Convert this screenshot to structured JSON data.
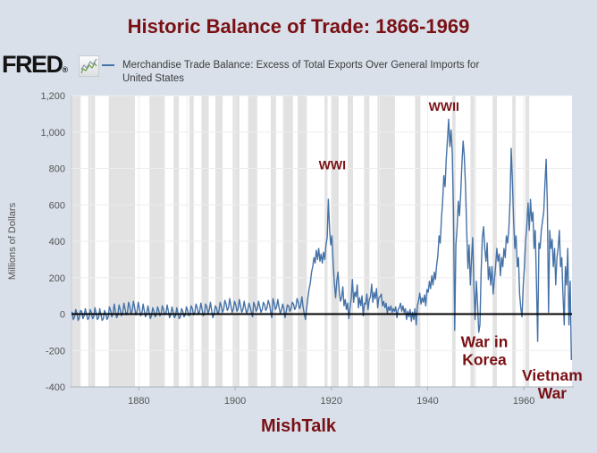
{
  "page": {
    "title": "Historic Balance of Trade: 1866-1969"
  },
  "header": {
    "logo_text": "FRED",
    "logo_reg": "®"
  },
  "legend": {
    "line1": "Merchandise Trade Balance: Excess of Total Exports Over General Imports for",
    "line2": "United States"
  },
  "footer": {
    "brand": "MishTalk"
  },
  "chart_data": {
    "type": "line",
    "title": "Historic Balance of Trade: 1866-1969",
    "series_name": "Merchandise Trade Balance: Excess of Total Exports Over General Imports for United States",
    "xlabel": "",
    "ylabel": "Millions of Dollars",
    "xlim": [
      1866,
      1970
    ],
    "ylim": [
      -400,
      1200
    ],
    "x_start_year": 1866,
    "points_per_year": 4,
    "line_color": "#4572a7",
    "zero_line_color": "#000000",
    "recession_color": "#e2e2e2",
    "grid_color": "#ededed",
    "axis_color": "#aab0ba",
    "plot_bg": "#ffffff",
    "yticks": [
      {
        "value": 1200,
        "label": "1,200"
      },
      {
        "value": 1000,
        "label": "1,000"
      },
      {
        "value": 800,
        "label": "800"
      },
      {
        "value": 600,
        "label": "600"
      },
      {
        "value": 400,
        "label": "400"
      },
      {
        "value": 200,
        "label": "200"
      },
      {
        "value": 0,
        "label": "0"
      },
      {
        "value": -200,
        "label": "-200"
      },
      {
        "value": -400,
        "label": "-400"
      }
    ],
    "xticks": [
      {
        "value": 1880,
        "label": "1880"
      },
      {
        "value": 1900,
        "label": "1900"
      },
      {
        "value": 1920,
        "label": "1920"
      },
      {
        "value": 1940,
        "label": "1940"
      },
      {
        "value": 1960,
        "label": "1960"
      }
    ],
    "grid_decades": [
      1870,
      1880,
      1890,
      1900,
      1910,
      1920,
      1930,
      1940,
      1950,
      1960
    ],
    "recessions": [
      [
        1866.0,
        1867.9
      ],
      [
        1869.5,
        1870.9
      ],
      [
        1873.75,
        1879.2
      ],
      [
        1882.2,
        1885.4
      ],
      [
        1887.2,
        1888.3
      ],
      [
        1890.5,
        1891.4
      ],
      [
        1893.0,
        1894.5
      ],
      [
        1895.9,
        1897.4
      ],
      [
        1899.5,
        1900.9
      ],
      [
        1902.7,
        1904.6
      ],
      [
        1907.4,
        1908.5
      ],
      [
        1910.0,
        1912.0
      ],
      [
        1913.0,
        1914.9
      ],
      [
        1918.6,
        1919.2
      ],
      [
        1920.0,
        1921.5
      ],
      [
        1923.4,
        1924.5
      ],
      [
        1926.8,
        1927.9
      ],
      [
        1929.6,
        1933.2
      ],
      [
        1937.4,
        1938.5
      ],
      [
        1945.1,
        1945.8
      ],
      [
        1948.9,
        1949.8
      ],
      [
        1953.5,
        1954.4
      ],
      [
        1957.6,
        1958.3
      ],
      [
        1960.3,
        1961.1
      ]
    ],
    "annotations": [
      {
        "id": "wwi",
        "lines": [
          "WWI"
        ],
        "year": 1920.2,
        "value": 820
      },
      {
        "id": "wwii",
        "lines": [
          "WWII"
        ],
        "year": 1943.4,
        "value": 1140
      },
      {
        "id": "korea",
        "lines": [
          "War in",
          "Korea"
        ],
        "year": 1951.8,
        "value": -205
      },
      {
        "id": "vietnam",
        "lines": [
          "Vietnam",
          "War"
        ],
        "year": 1965.9,
        "value": -390
      }
    ],
    "values": [
      10,
      -30,
      -15,
      25,
      5,
      -35,
      -20,
      20,
      15,
      -25,
      -10,
      30,
      0,
      -30,
      -20,
      25,
      10,
      -25,
      -15,
      35,
      5,
      -30,
      -20,
      30,
      -5,
      -35,
      -25,
      20,
      0,
      -30,
      -15,
      40,
      20,
      -15,
      0,
      55,
      15,
      -20,
      -5,
      50,
      25,
      -10,
      5,
      60,
      30,
      -5,
      10,
      65,
      40,
      0,
      20,
      70,
      35,
      -5,
      15,
      65,
      30,
      -10,
      5,
      55,
      20,
      -15,
      0,
      45,
      10,
      -25,
      -10,
      35,
      15,
      -15,
      -5,
      40,
      20,
      -10,
      0,
      45,
      25,
      -5,
      5,
      50,
      15,
      -20,
      -5,
      40,
      10,
      -20,
      -10,
      35,
      5,
      -25,
      -15,
      30,
      15,
      -15,
      -5,
      40,
      20,
      -10,
      0,
      45,
      30,
      -5,
      10,
      55,
      35,
      0,
      15,
      60,
      25,
      -10,
      5,
      55,
      40,
      5,
      20,
      65,
      20,
      -20,
      0,
      45,
      35,
      0,
      15,
      65,
      45,
      10,
      25,
      75,
      55,
      20,
      35,
      85,
      45,
      10,
      25,
      70,
      50,
      15,
      30,
      80,
      45,
      10,
      25,
      70,
      35,
      5,
      20,
      60,
      40,
      10,
      -15,
      65,
      45,
      15,
      30,
      70,
      40,
      10,
      25,
      65,
      50,
      20,
      35,
      75,
      55,
      15,
      -20,
      85,
      60,
      25,
      40,
      80,
      35,
      5,
      20,
      55,
      30,
      -20,
      15,
      50,
      45,
      15,
      30,
      65,
      55,
      25,
      40,
      85,
      65,
      30,
      45,
      95,
      40,
      0,
      -30,
      35,
      90,
      140,
      170,
      230,
      260,
      310,
      280,
      350,
      300,
      360,
      290,
      330,
      280,
      340,
      300,
      380,
      420,
      630,
      460,
      380,
      430,
      280,
      170,
      90,
      180,
      230,
      130,
      70,
      90,
      150,
      45,
      80,
      25,
      60,
      -25,
      35,
      85,
      190,
      65,
      120,
      95,
      160,
      35,
      90,
      45,
      100,
      -10,
      60,
      55,
      110,
      25,
      80,
      95,
      165,
      65,
      120,
      85,
      140,
      35,
      90,
      95,
      110,
      45,
      70,
      35,
      60,
      5,
      40,
      20,
      45,
      10,
      30,
      15,
      40,
      -20,
      25,
      35,
      60,
      15,
      45,
      10,
      30,
      -30,
      15,
      -15,
      25,
      -40,
      10,
      -30,
      30,
      -60,
      45,
      75,
      115,
      55,
      90,
      65,
      105,
      45,
      135,
      120,
      180,
      140,
      210,
      160,
      230,
      190,
      270,
      320,
      430,
      390,
      520,
      620,
      760,
      700,
      850,
      960,
      1070,
      920,
      1010,
      880,
      560,
      -90,
      380,
      470,
      620,
      540,
      660,
      820,
      950,
      870,
      700,
      460,
      250,
      380,
      160,
      300,
      420,
      150,
      -30,
      180,
      60,
      -100,
      -60,
      240,
      420,
      480,
      360,
      290,
      390,
      190,
      260,
      160,
      260,
      110,
      190,
      260,
      360,
      290,
      330,
      210,
      310,
      260,
      360,
      310,
      430,
      390,
      460,
      620,
      910,
      720,
      510,
      360,
      430,
      260,
      310,
      110,
      30,
      -15,
      160,
      260,
      410,
      490,
      610,
      460,
      630,
      510,
      560,
      360,
      460,
      160,
      -150,
      390,
      360,
      460,
      510,
      560,
      710,
      850,
      610,
      10,
      460,
      360,
      410,
      260,
      360,
      160,
      310,
      360,
      460,
      260,
      310,
      110,
      -60,
      260,
      160,
      360,
      -60,
      180,
      -250
    ]
  }
}
